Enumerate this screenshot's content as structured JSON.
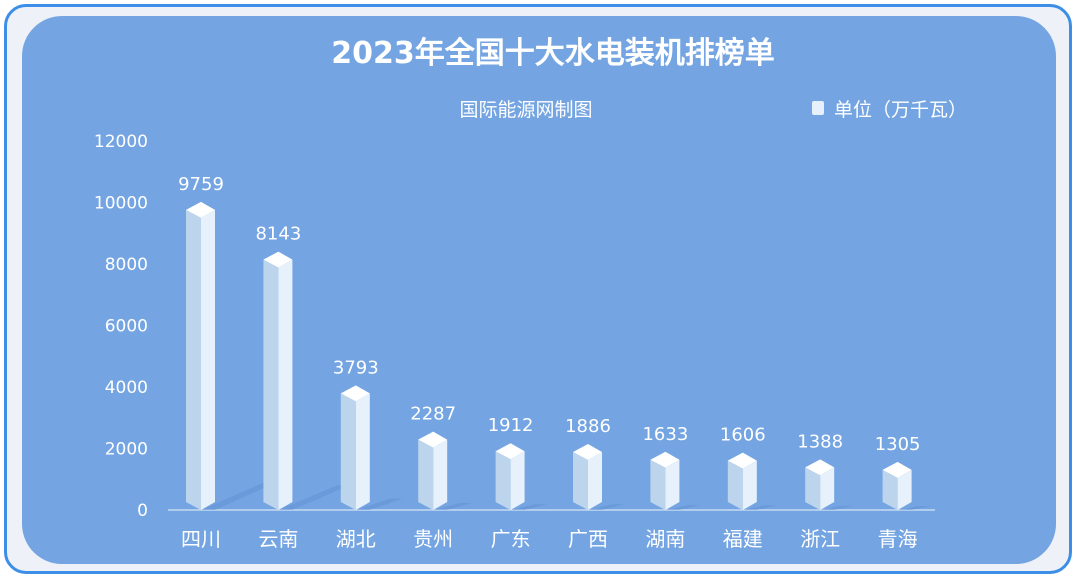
{
  "chart_data": {
    "type": "bar",
    "title": "2023年全国十大水电装机排榜单",
    "subtitle": "国际能源网制图",
    "legend": {
      "label": "单位（万千瓦）",
      "position": "top-right"
    },
    "categories": [
      "四川",
      "云南",
      "湖北",
      "贵州",
      "广东",
      "广西",
      "湖南",
      "福建",
      "浙江",
      "青海"
    ],
    "values": [
      9759,
      8143,
      3793,
      2287,
      1912,
      1886,
      1633,
      1606,
      1388,
      1305
    ],
    "yticks": [
      0,
      2000,
      4000,
      6000,
      8000,
      10000,
      12000
    ],
    "ylim": [
      0,
      12000
    ],
    "grid": false,
    "colors": {
      "panel": "#74a5e2",
      "bar_front": "#e6f1fb",
      "bar_side": "#bcd4ec",
      "bar_top": "#ffffff",
      "shadow": "#5f8fd0"
    }
  }
}
